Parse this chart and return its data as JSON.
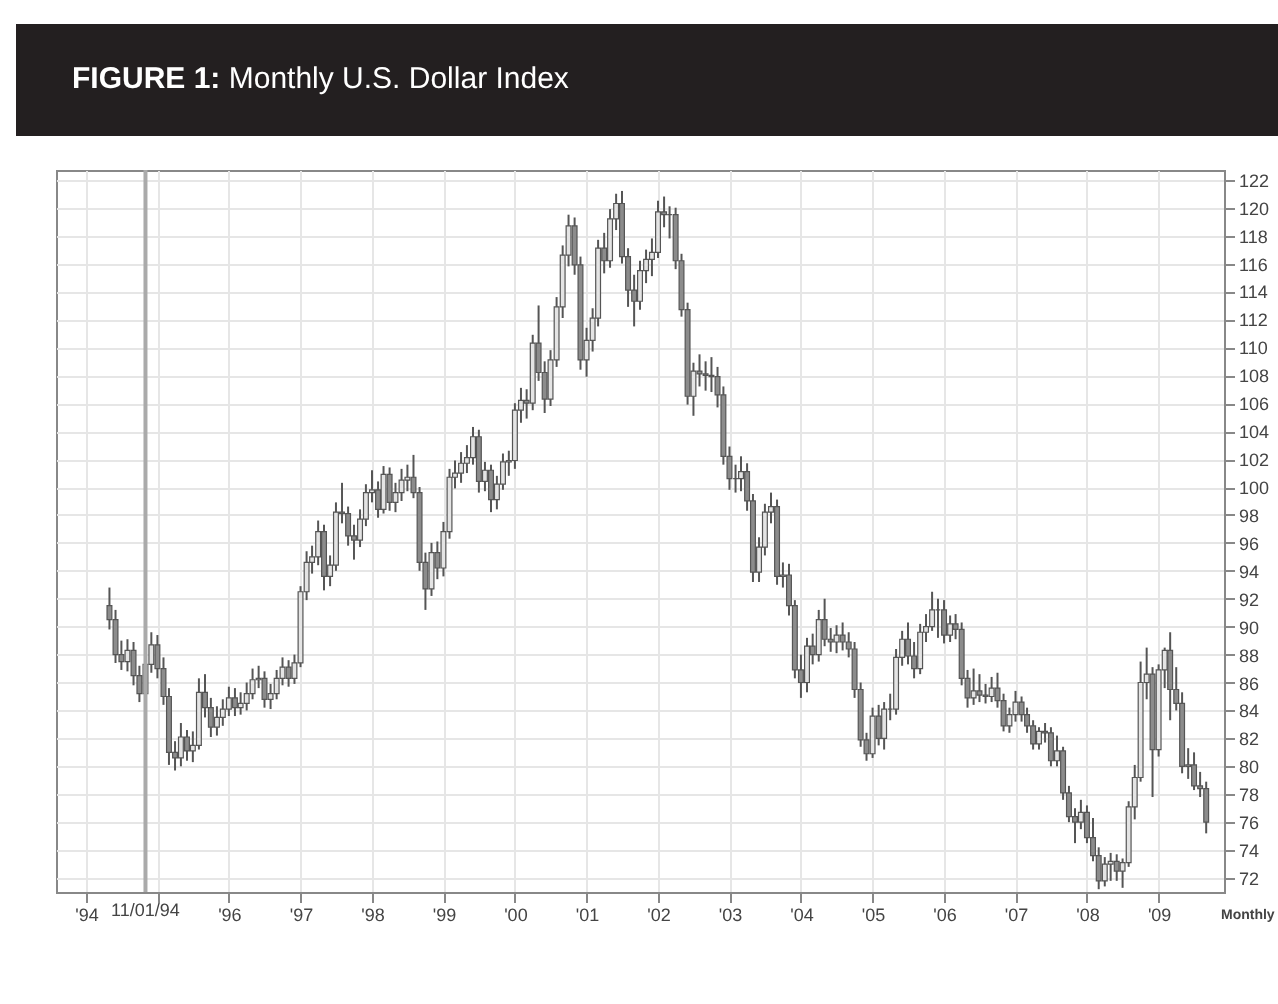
{
  "chart_data": {
    "type": "candlestick",
    "title": "FIGURE 1: Monthly U.S. Dollar Index",
    "xlabel": "Monthly",
    "color": "#555555",
    "grid": true,
    "xlim": [
      "1993-08",
      "2009-12"
    ],
    "ylim": [
      71,
      122.7
    ],
    "xticks": [
      {
        "value": "1994-01",
        "label": "'94"
      },
      {
        "value": "1995-01",
        "label": null
      },
      {
        "value": "1996-01",
        "label": "'96"
      },
      {
        "value": "1997-01",
        "label": "'97"
      },
      {
        "value": "1998-01",
        "label": "'98"
      },
      {
        "value": "1999-01",
        "label": "'99"
      },
      {
        "value": "2000-01",
        "label": "'00"
      },
      {
        "value": "2001-01",
        "label": "'01"
      },
      {
        "value": "2002-01",
        "label": "'02"
      },
      {
        "value": "2003-01",
        "label": "'03"
      },
      {
        "value": "2004-01",
        "label": "'04"
      },
      {
        "value": "2005-01",
        "label": "'05"
      },
      {
        "value": "2006-01",
        "label": "'06"
      },
      {
        "value": "2007-01",
        "label": "'07"
      },
      {
        "value": "2008-01",
        "label": "'08"
      },
      {
        "value": "2009-01",
        "label": "'09"
      }
    ],
    "yticks": [
      72,
      74,
      76,
      78,
      80,
      82,
      84,
      86,
      88,
      90,
      92,
      94,
      96,
      98,
      100,
      102,
      104,
      106,
      108,
      110,
      112,
      114,
      116,
      118,
      120,
      122
    ],
    "ref_lines": [
      {
        "axis": "x",
        "value": "1994-11",
        "label": "11/01/94",
        "color": "#aaaaaa"
      }
    ],
    "x": [
      "1994-05",
      "1994-06",
      "1994-07",
      "1994-08",
      "1994-09",
      "1994-10",
      "1994-11",
      "1994-12",
      "1995-01",
      "1995-02",
      "1995-03",
      "1995-04",
      "1995-05",
      "1995-06",
      "1995-07",
      "1995-08",
      "1995-09",
      "1995-10",
      "1995-11",
      "1995-12",
      "1996-01",
      "1996-02",
      "1996-03",
      "1996-04",
      "1996-05",
      "1996-06",
      "1996-07",
      "1996-08",
      "1996-09",
      "1996-10",
      "1996-11",
      "1996-12",
      "1997-01",
      "1997-02",
      "1997-03",
      "1997-04",
      "1997-05",
      "1997-06",
      "1997-07",
      "1997-08",
      "1997-09",
      "1997-10",
      "1997-11",
      "1997-12",
      "1998-01",
      "1998-02",
      "1998-03",
      "1998-04",
      "1998-05",
      "1998-06",
      "1998-07",
      "1998-08",
      "1998-09",
      "1998-10",
      "1998-11",
      "1998-12",
      "1999-01",
      "1999-02",
      "1999-03",
      "1999-04",
      "1999-05",
      "1999-06",
      "1999-07",
      "1999-08",
      "1999-09",
      "1999-10",
      "1999-11",
      "1999-12",
      "2000-01",
      "2000-02",
      "2000-03",
      "2000-04",
      "2000-05",
      "2000-06",
      "2000-07",
      "2000-08",
      "2000-09",
      "2000-10",
      "2000-11",
      "2000-12",
      "2001-01",
      "2001-02",
      "2001-03",
      "2001-04",
      "2001-05",
      "2001-06",
      "2001-07",
      "2001-08",
      "2001-09",
      "2001-10",
      "2001-11",
      "2001-12",
      "2002-01",
      "2002-02",
      "2002-03",
      "2002-04",
      "2002-05",
      "2002-06",
      "2002-07",
      "2002-08",
      "2002-09",
      "2002-10",
      "2002-11",
      "2002-12",
      "2003-01",
      "2003-02",
      "2003-03",
      "2003-04",
      "2003-05",
      "2003-06",
      "2003-07",
      "2003-08",
      "2003-09",
      "2003-10",
      "2003-11",
      "2003-12",
      "2004-01",
      "2004-02",
      "2004-03",
      "2004-04",
      "2004-05",
      "2004-06",
      "2004-07",
      "2004-08",
      "2004-09",
      "2004-10",
      "2004-11",
      "2004-12",
      "2005-01",
      "2005-02",
      "2005-03",
      "2005-04",
      "2005-05",
      "2005-06",
      "2005-07",
      "2005-08",
      "2005-09",
      "2005-10",
      "2005-11",
      "2005-12",
      "2006-01",
      "2006-02",
      "2006-03",
      "2006-04",
      "2006-05",
      "2006-06",
      "2006-07",
      "2006-08",
      "2006-09",
      "2006-10",
      "2006-11",
      "2006-12",
      "2007-01",
      "2007-02",
      "2007-03",
      "2007-04",
      "2007-05",
      "2007-06",
      "2007-07",
      "2007-08",
      "2007-09",
      "2007-10",
      "2007-11",
      "2007-12",
      "2008-01",
      "2008-02",
      "2008-03",
      "2008-04",
      "2008-05",
      "2008-06",
      "2008-07",
      "2008-08",
      "2008-09",
      "2008-10",
      "2008-11",
      "2008-12",
      "2009-01",
      "2009-02",
      "2009-03",
      "2009-04",
      "2009-05",
      "2009-06",
      "2009-07",
      "2009-08",
      "2009-09"
    ],
    "ohlc": [
      [
        91.5,
        92.8,
        89.8,
        90.5
      ],
      [
        90.5,
        91.2,
        87.4,
        88.0
      ],
      [
        88.0,
        89.0,
        86.9,
        87.5
      ],
      [
        87.5,
        89.1,
        86.8,
        88.3
      ],
      [
        88.3,
        88.9,
        85.8,
        86.5
      ],
      [
        86.5,
        87.2,
        84.6,
        85.2
      ],
      [
        85.2,
        88.2,
        84.9,
        87.3
      ],
      [
        87.3,
        89.6,
        86.7,
        88.7
      ],
      [
        88.7,
        89.4,
        86.3,
        87.0
      ],
      [
        87.0,
        87.8,
        84.4,
        85.0
      ],
      [
        85.0,
        85.6,
        80.1,
        81.0
      ],
      [
        81.0,
        81.8,
        79.7,
        80.6
      ],
      [
        80.6,
        83.1,
        80.0,
        82.1
      ],
      [
        82.1,
        82.6,
        80.4,
        81.1
      ],
      [
        81.1,
        82.5,
        80.3,
        81.5
      ],
      [
        81.5,
        86.3,
        81.2,
        85.3
      ],
      [
        85.3,
        86.6,
        83.5,
        84.2
      ],
      [
        84.2,
        84.9,
        82.1,
        82.8
      ],
      [
        82.8,
        84.3,
        82.2,
        83.5
      ],
      [
        83.5,
        84.8,
        82.9,
        84.1
      ],
      [
        84.1,
        85.7,
        83.6,
        84.9
      ],
      [
        84.9,
        85.6,
        83.6,
        84.2
      ],
      [
        84.2,
        85.3,
        83.7,
        84.5
      ],
      [
        84.5,
        86.0,
        84.0,
        85.2
      ],
      [
        85.2,
        87.0,
        84.8,
        86.2
      ],
      [
        86.2,
        87.2,
        85.6,
        86.3
      ],
      [
        86.3,
        86.8,
        84.2,
        84.8
      ],
      [
        84.8,
        85.9,
        84.1,
        85.2
      ],
      [
        85.2,
        86.9,
        84.8,
        86.3
      ],
      [
        86.3,
        87.8,
        85.8,
        87.1
      ],
      [
        87.1,
        87.6,
        85.7,
        86.3
      ],
      [
        86.3,
        88.0,
        85.9,
        87.4
      ],
      [
        87.4,
        92.9,
        87.1,
        92.5
      ],
      [
        92.5,
        95.4,
        91.9,
        94.6
      ],
      [
        94.6,
        95.8,
        93.8,
        95.0
      ],
      [
        95.0,
        97.6,
        94.4,
        96.8
      ],
      [
        96.8,
        97.3,
        92.6,
        93.6
      ],
      [
        93.6,
        95.1,
        92.9,
        94.4
      ],
      [
        94.4,
        98.9,
        94.0,
        98.2
      ],
      [
        98.2,
        100.3,
        97.4,
        98.1
      ],
      [
        98.1,
        98.6,
        95.8,
        96.5
      ],
      [
        96.5,
        97.3,
        94.8,
        96.2
      ],
      [
        96.2,
        98.4,
        95.7,
        97.7
      ],
      [
        97.7,
        100.2,
        97.2,
        99.6
      ],
      [
        99.6,
        101.2,
        98.9,
        99.8
      ],
      [
        99.8,
        100.4,
        97.8,
        98.4
      ],
      [
        98.4,
        101.5,
        98.1,
        100.9
      ],
      [
        100.9,
        101.4,
        98.3,
        98.9
      ],
      [
        98.9,
        100.3,
        98.2,
        99.6
      ],
      [
        99.6,
        101.3,
        99.0,
        100.5
      ],
      [
        100.5,
        101.6,
        99.7,
        100.7
      ],
      [
        100.7,
        102.3,
        99.2,
        99.6
      ],
      [
        99.6,
        100.0,
        94.0,
        94.6
      ],
      [
        94.6,
        95.3,
        91.2,
        92.7
      ],
      [
        92.7,
        96.0,
        92.2,
        95.3
      ],
      [
        95.3,
        96.1,
        93.4,
        94.2
      ],
      [
        94.2,
        97.5,
        93.6,
        96.8
      ],
      [
        96.8,
        101.3,
        96.3,
        100.7
      ],
      [
        100.7,
        101.9,
        99.9,
        101.0
      ],
      [
        101.0,
        102.5,
        100.3,
        101.7
      ],
      [
        101.7,
        103.0,
        101.0,
        102.1
      ],
      [
        102.1,
        104.3,
        101.6,
        103.6
      ],
      [
        103.6,
        104.1,
        99.6,
        100.4
      ],
      [
        100.4,
        101.8,
        99.7,
        101.2
      ],
      [
        101.2,
        101.6,
        98.2,
        99.1
      ],
      [
        99.1,
        100.8,
        98.4,
        100.2
      ],
      [
        100.2,
        102.4,
        99.8,
        101.8
      ],
      [
        101.8,
        102.6,
        100.8,
        101.9
      ],
      [
        101.9,
        106.0,
        101.3,
        105.5
      ],
      [
        105.5,
        107.1,
        104.6,
        106.2
      ],
      [
        106.2,
        107.0,
        104.9,
        106.0
      ],
      [
        106.0,
        110.9,
        105.5,
        110.3
      ],
      [
        110.3,
        113.0,
        107.6,
        108.2
      ],
      [
        108.2,
        109.0,
        105.3,
        106.3
      ],
      [
        106.3,
        109.8,
        105.8,
        109.1
      ],
      [
        109.1,
        113.6,
        108.6,
        112.9
      ],
      [
        112.9,
        117.3,
        112.1,
        116.6
      ],
      [
        116.6,
        119.5,
        115.8,
        118.7
      ],
      [
        118.7,
        119.3,
        115.2,
        115.9
      ],
      [
        115.9,
        116.5,
        108.4,
        109.1
      ],
      [
        109.1,
        111.4,
        107.9,
        110.5
      ],
      [
        110.5,
        112.8,
        109.7,
        112.1
      ],
      [
        112.1,
        117.7,
        111.5,
        117.1
      ],
      [
        117.1,
        118.2,
        115.3,
        116.2
      ],
      [
        116.2,
        119.9,
        115.7,
        119.2
      ],
      [
        119.2,
        121.0,
        118.4,
        120.3
      ],
      [
        120.3,
        121.2,
        116.0,
        116.5
      ],
      [
        116.5,
        117.1,
        112.9,
        114.1
      ],
      [
        114.1,
        115.2,
        111.5,
        113.3
      ],
      [
        113.3,
        116.2,
        112.7,
        115.5
      ],
      [
        115.5,
        117.0,
        114.6,
        116.3
      ],
      [
        116.3,
        117.8,
        115.1,
        116.8
      ],
      [
        116.8,
        120.5,
        116.4,
        119.7
      ],
      [
        119.7,
        120.8,
        118.6,
        119.5
      ],
      [
        119.5,
        120.1,
        117.8,
        119.5
      ],
      [
        119.5,
        120.0,
        115.6,
        116.2
      ],
      [
        116.2,
        116.7,
        112.2,
        112.7
      ],
      [
        112.7,
        113.2,
        105.9,
        106.5
      ],
      [
        106.5,
        108.9,
        105.1,
        108.3
      ],
      [
        108.3,
        109.5,
        107.2,
        108.1
      ],
      [
        108.1,
        109.0,
        106.9,
        108.0
      ],
      [
        108.0,
        109.3,
        106.8,
        107.9
      ],
      [
        107.9,
        108.6,
        105.7,
        106.6
      ],
      [
        106.6,
        107.2,
        101.6,
        102.2
      ],
      [
        102.2,
        102.9,
        99.8,
        100.6
      ],
      [
        100.6,
        101.6,
        99.6,
        100.6
      ],
      [
        100.6,
        102.2,
        99.7,
        101.1
      ],
      [
        101.1,
        101.7,
        98.3,
        99.0
      ],
      [
        99.0,
        99.5,
        93.2,
        93.9
      ],
      [
        93.9,
        96.4,
        93.2,
        95.7
      ],
      [
        95.7,
        98.8,
        95.1,
        98.2
      ],
      [
        98.2,
        99.6,
        97.4,
        98.6
      ],
      [
        98.6,
        99.1,
        93.0,
        93.6
      ],
      [
        93.6,
        94.6,
        92.8,
        93.7
      ],
      [
        93.7,
        94.5,
        90.8,
        91.5
      ],
      [
        91.5,
        91.9,
        86.3,
        86.9
      ],
      [
        86.9,
        88.0,
        84.9,
        86.0
      ],
      [
        86.0,
        89.2,
        85.3,
        88.6
      ],
      [
        88.6,
        89.5,
        87.3,
        88.0
      ],
      [
        88.0,
        91.2,
        87.5,
        90.5
      ],
      [
        90.5,
        92.0,
        88.6,
        89.1
      ],
      [
        89.1,
        89.9,
        88.2,
        88.9
      ],
      [
        88.9,
        90.1,
        88.1,
        89.4
      ],
      [
        89.4,
        90.3,
        88.3,
        88.9
      ],
      [
        88.9,
        89.6,
        87.8,
        88.4
      ],
      [
        88.4,
        88.9,
        84.9,
        85.5
      ],
      [
        85.5,
        86.0,
        81.4,
        81.9
      ],
      [
        81.9,
        82.4,
        80.4,
        80.9
      ],
      [
        80.9,
        84.2,
        80.6,
        83.6
      ],
      [
        83.6,
        84.4,
        81.5,
        82.0
      ],
      [
        82.0,
        84.6,
        81.2,
        84.1
      ],
      [
        84.1,
        85.2,
        83.3,
        84.1
      ],
      [
        84.1,
        88.4,
        83.7,
        87.8
      ],
      [
        87.8,
        89.7,
        87.2,
        89.1
      ],
      [
        89.1,
        90.3,
        87.3,
        87.9
      ],
      [
        87.9,
        88.9,
        86.3,
        87.0
      ],
      [
        87.0,
        90.2,
        86.6,
        89.6
      ],
      [
        89.6,
        90.9,
        88.9,
        90.0
      ],
      [
        90.0,
        92.5,
        89.7,
        91.2
      ],
      [
        91.2,
        92.0,
        89.2,
        91.2
      ],
      [
        91.2,
        91.9,
        88.8,
        89.4
      ],
      [
        89.4,
        90.8,
        88.9,
        90.2
      ],
      [
        90.2,
        90.9,
        89.1,
        89.8
      ],
      [
        89.8,
        90.3,
        85.8,
        86.3
      ],
      [
        86.3,
        86.9,
        84.2,
        84.9
      ],
      [
        84.9,
        87.0,
        84.4,
        85.4
      ],
      [
        85.4,
        86.6,
        84.6,
        85.1
      ],
      [
        85.1,
        85.9,
        84.5,
        85.0
      ],
      [
        85.0,
        86.4,
        84.6,
        85.6
      ],
      [
        85.6,
        86.7,
        84.2,
        84.7
      ],
      [
        84.7,
        85.2,
        82.5,
        82.9
      ],
      [
        82.9,
        84.2,
        82.4,
        83.7
      ],
      [
        83.7,
        85.4,
        83.2,
        84.6
      ],
      [
        84.6,
        85.0,
        83.2,
        83.7
      ],
      [
        83.7,
        84.2,
        82.4,
        82.9
      ],
      [
        82.9,
        83.3,
        81.2,
        81.6
      ],
      [
        81.6,
        82.8,
        81.2,
        82.5
      ],
      [
        82.5,
        83.1,
        81.7,
        82.4
      ],
      [
        82.4,
        82.8,
        80.0,
        80.4
      ],
      [
        80.4,
        82.2,
        80.0,
        81.1
      ],
      [
        81.1,
        81.4,
        77.6,
        78.1
      ],
      [
        78.1,
        78.6,
        76.0,
        76.4
      ],
      [
        76.4,
        77.0,
        74.5,
        76.0
      ],
      [
        76.0,
        77.6,
        75.5,
        76.7
      ],
      [
        76.7,
        77.2,
        74.5,
        74.9
      ],
      [
        74.9,
        76.3,
        73.2,
        73.6
      ],
      [
        73.6,
        74.2,
        71.2,
        71.8
      ],
      [
        71.8,
        73.5,
        71.4,
        73.0
      ],
      [
        73.0,
        73.8,
        71.8,
        73.2
      ],
      [
        73.2,
        73.7,
        71.8,
        72.5
      ],
      [
        72.5,
        73.4,
        71.3,
        73.1
      ],
      [
        73.1,
        77.5,
        72.8,
        77.1
      ],
      [
        77.1,
        80.1,
        76.2,
        79.2
      ],
      [
        79.2,
        87.5,
        78.9,
        86.0
      ],
      [
        86.0,
        88.5,
        84.8,
        86.6
      ],
      [
        86.6,
        87.1,
        77.8,
        81.2
      ],
      [
        81.2,
        87.3,
        80.7,
        86.9
      ],
      [
        86.9,
        88.5,
        85.6,
        88.3
      ],
      [
        88.3,
        89.6,
        83.3,
        85.5
      ],
      [
        85.5,
        87.1,
        84.0,
        84.5
      ],
      [
        84.5,
        85.3,
        79.5,
        80.0
      ],
      [
        80.0,
        81.3,
        79.1,
        80.1
      ],
      [
        80.1,
        81.0,
        78.3,
        78.6
      ],
      [
        78.6,
        79.6,
        77.8,
        78.4
      ],
      [
        78.4,
        78.9,
        75.2,
        76.0
      ]
    ]
  }
}
